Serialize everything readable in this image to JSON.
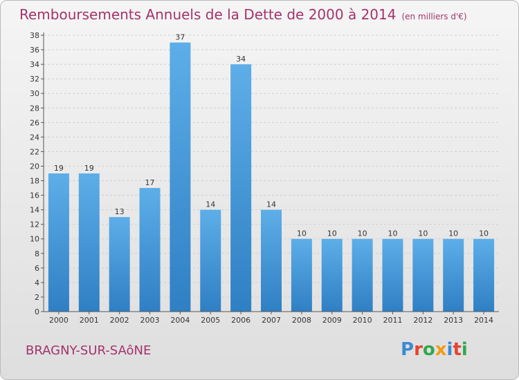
{
  "header": {
    "title": "Remboursements Annuels de la Dette de 2000 à 2014",
    "unit": "(en milliers d'€)"
  },
  "footer": {
    "commune": "BRAGNY-SUR-SAôNE",
    "logo": "Proxiti",
    "logo_colors": [
      "#3b8bd1",
      "#e8432f",
      "#2fa84f",
      "#f39c12",
      "#3b8bd1",
      "#e8432f",
      "#2fa84f"
    ]
  },
  "colors": {
    "title": "#a3336b",
    "bar_light": "#5daee8",
    "bar_dark": "#2f7fc4",
    "axis": "#555555",
    "grid": "#cfcfcf"
  },
  "chart_data": {
    "type": "bar",
    "title": "Remboursements Annuels de la Dette de 2000 à 2014",
    "xlabel": "",
    "ylabel": "",
    "categories": [
      "2000",
      "2001",
      "2002",
      "2003",
      "2004",
      "2005",
      "2006",
      "2007",
      "2008",
      "2009",
      "2010",
      "2011",
      "2012",
      "2013",
      "2014"
    ],
    "values": [
      19,
      19,
      13,
      17,
      37,
      14,
      34,
      14,
      10,
      10,
      10,
      10,
      10,
      10,
      10
    ],
    "ylim": [
      0,
      38
    ],
    "yticks": [
      0,
      2,
      4,
      6,
      8,
      10,
      12,
      14,
      16,
      18,
      20,
      22,
      24,
      26,
      28,
      30,
      32,
      34,
      36,
      38
    ],
    "grid": true,
    "data_labels": true
  }
}
